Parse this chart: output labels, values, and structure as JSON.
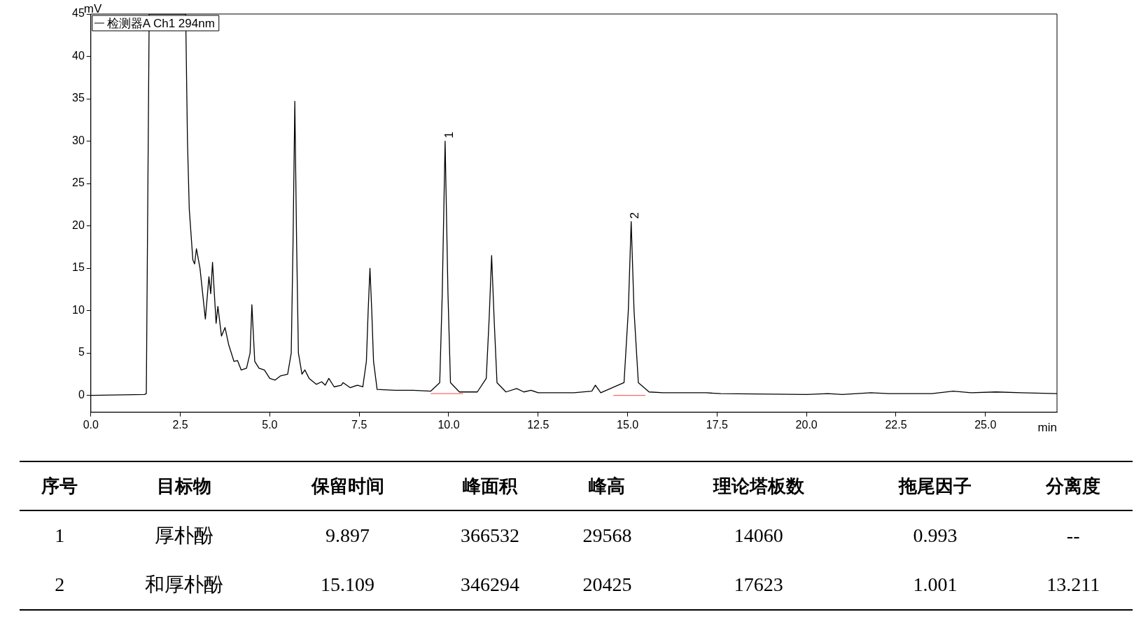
{
  "chart_data": [
    {
      "type": "line",
      "xlabel": "min",
      "ylabel": "mV",
      "xlim": [
        0,
        27
      ],
      "ylim": [
        -2,
        45
      ],
      "xticks": [
        {
          "value": 0,
          "label": "0.0"
        },
        {
          "value": 2.5,
          "label": "2.5"
        },
        {
          "value": 5,
          "label": "5.0"
        },
        {
          "value": 7.5,
          "label": "7.5"
        },
        {
          "value": 10,
          "label": "10.0"
        },
        {
          "value": 12.5,
          "label": "12.5"
        },
        {
          "value": 15,
          "label": "15.0"
        },
        {
          "value": 17.5,
          "label": "17.5"
        },
        {
          "value": 20,
          "label": "20.0"
        },
        {
          "value": 22.5,
          "label": "22.5"
        },
        {
          "value": 25,
          "label": "25.0"
        }
      ],
      "yticks": [
        0,
        5,
        10,
        15,
        20,
        25,
        30,
        35,
        40,
        45
      ],
      "grid": false,
      "legend": "top left",
      "marker": "none",
      "line_style": "solid",
      "annotations": [
        {
          "text": "1",
          "x": 9.9,
          "y": 30
        },
        {
          "text": "2",
          "x": 15.1,
          "y": 20.5
        }
      ],
      "series": [
        {
          "name": "检测器A Ch1 294nm",
          "color": "#000000",
          "x": [
            0,
            1.5,
            1.55,
            1.63,
            2.65,
            2.7,
            2.75,
            2.85,
            2.9,
            2.95,
            3.05,
            3.2,
            3.3,
            3.35,
            3.4,
            3.5,
            3.55,
            3.65,
            3.75,
            3.85,
            4.0,
            4.1,
            4.2,
            4.35,
            4.45,
            4.5,
            4.58,
            4.7,
            4.85,
            5.0,
            5.15,
            5.3,
            5.5,
            5.6,
            5.65,
            5.7,
            5.75,
            5.8,
            5.9,
            5.98,
            6.1,
            6.3,
            6.45,
            6.55,
            6.65,
            6.8,
            7.0,
            7.05,
            7.25,
            7.45,
            7.6,
            7.7,
            7.75,
            7.8,
            7.85,
            7.9,
            8.0,
            8.5,
            9.0,
            9.5,
            9.75,
            9.82,
            9.9,
            9.98,
            10.05,
            10.3,
            10.8,
            11.05,
            11.13,
            11.2,
            11.27,
            11.35,
            11.6,
            11.9,
            12.1,
            12.3,
            12.5,
            13.5,
            14.0,
            14.1,
            14.25,
            14.9,
            15.02,
            15.1,
            15.18,
            15.3,
            15.6,
            16.0,
            17.2,
            17.6,
            20.0,
            20.6,
            21.0,
            21.8,
            22.3,
            23.5,
            24.1,
            24.6,
            25.3,
            26.0,
            27.0
          ],
          "values": [
            0,
            0.1,
            0.2,
            45,
            45,
            30,
            22,
            16,
            15.5,
            17.3,
            15,
            9,
            14,
            12,
            15.7,
            8.5,
            10.5,
            7,
            8,
            6,
            4,
            4.1,
            3,
            3.2,
            5,
            10.7,
            4,
            3.2,
            3,
            2,
            1.8,
            2.3,
            2.5,
            5,
            18,
            34.7,
            18,
            5,
            2.5,
            3,
            2,
            1.3,
            1.6,
            1.2,
            2,
            1,
            1.2,
            1.5,
            0.9,
            1.2,
            1,
            4,
            10,
            15,
            10,
            4,
            0.7,
            0.6,
            0.6,
            0.5,
            1.5,
            12,
            30,
            12,
            1.5,
            0.4,
            0.4,
            2,
            9,
            16.5,
            9,
            1.5,
            0.4,
            0.8,
            0.4,
            0.6,
            0.3,
            0.3,
            0.5,
            1.2,
            0.3,
            1.5,
            10,
            20.5,
            10,
            1.5,
            0.4,
            0.3,
            0.3,
            0.2,
            0.1,
            0.2,
            0.1,
            0.3,
            0.2,
            0.2,
            0.5,
            0.3,
            0.4,
            0.3,
            0.2
          ]
        },
        {
          "color": "#ff6666",
          "x": [
            9.5,
            10.4
          ],
          "values": [
            0.2,
            0.2
          ]
        },
        {
          "color": "#ff6666",
          "x": [
            14.6,
            15.5
          ],
          "values": [
            0.0,
            0.0
          ]
        }
      ]
    },
    {
      "type": "other",
      "categories": [
        "序号",
        "目标物",
        "保留时间",
        "峰面积",
        "峰高",
        "理论塔板数",
        "拖尾因子",
        "分离度"
      ],
      "cell_labels": [
        [
          "1",
          "厚朴酚",
          "9.897",
          "366532",
          "29568",
          "14060",
          "0.993",
          "--"
        ],
        [
          "2",
          "和厚朴酚",
          "15.109",
          "346294",
          "20425",
          "17623",
          "1.001",
          "13.211"
        ]
      ]
    }
  ]
}
